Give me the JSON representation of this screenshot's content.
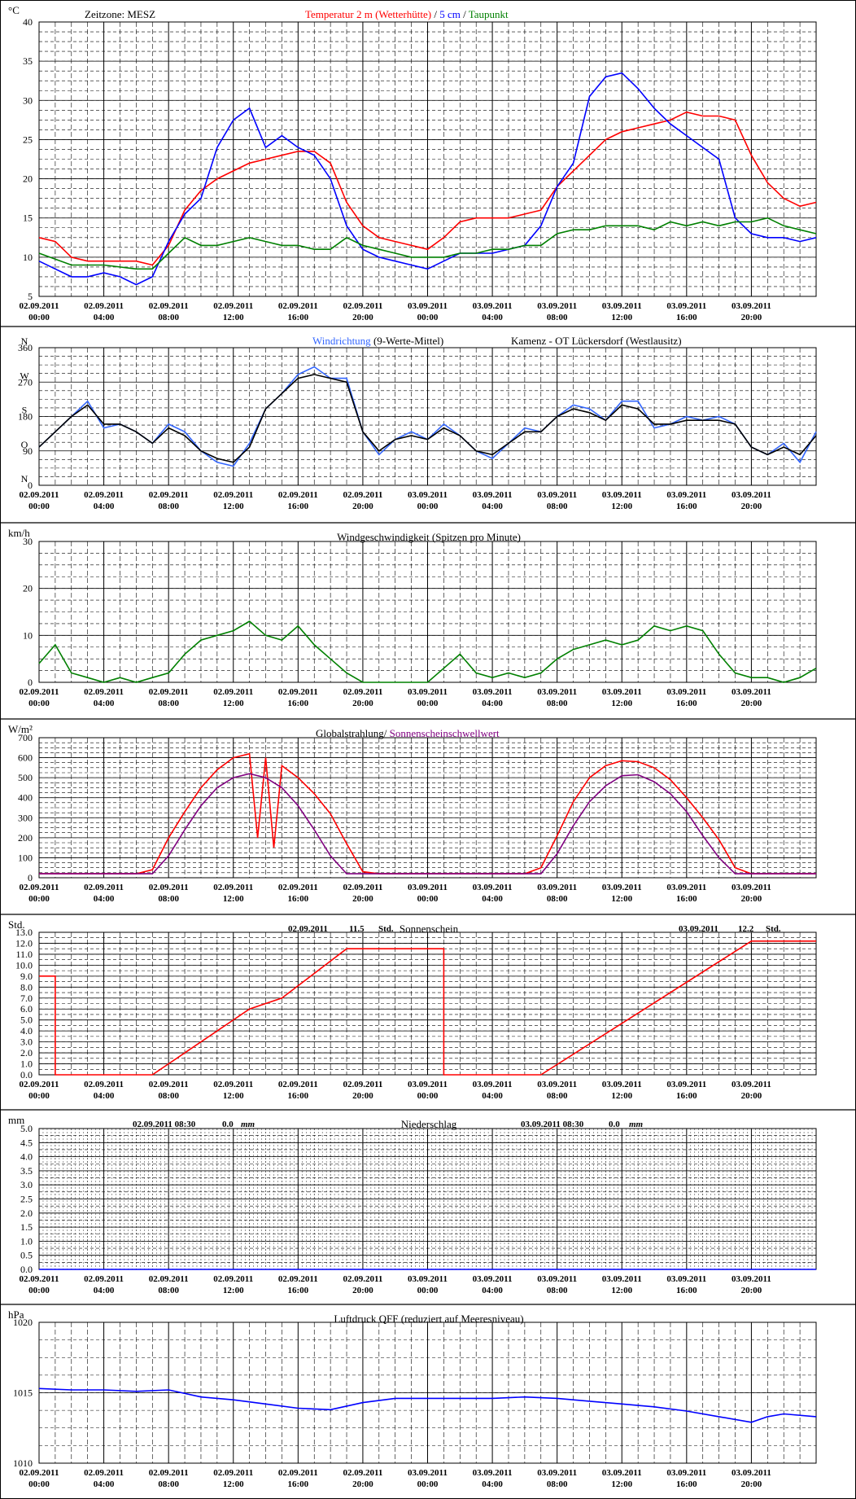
{
  "header": {
    "timezone": "Zeitzone: MESZ"
  },
  "time_axis": {
    "dates": [
      "02.09.2011",
      "02.09.2011",
      "02.09.2011",
      "02.09.2011",
      "02.09.2011",
      "02.09.2011",
      "03.09.2011",
      "03.09.2011",
      "03.09.2011",
      "03.09.2011",
      "03.09.2011",
      "03.09.2011"
    ],
    "times": [
      "00:00",
      "04:00",
      "08:00",
      "12:00",
      "16:00",
      "20:00",
      "00:00",
      "04:00",
      "08:00",
      "12:00",
      "16:00",
      "20:00"
    ]
  },
  "chart_data": [
    {
      "id": "temperature",
      "type": "line",
      "unit": "°C",
      "title_parts": [
        "Temperatur 2 m (Wetterhütte)",
        " / ",
        "5 cm",
        " / ",
        "Taupunkt"
      ],
      "title_colors": [
        "#ff0000",
        "#000000",
        "#0000ff",
        "#000000",
        "#008000"
      ],
      "ylim": [
        5,
        40
      ],
      "yticks": [
        5,
        10,
        15,
        20,
        25,
        30,
        35,
        40
      ],
      "x_unit": "hours since 02.09.2011 00:00",
      "xlim": [
        0,
        48
      ],
      "series": [
        {
          "color": "#ff0000",
          "x": [
            0,
            1,
            2,
            3,
            4,
            5,
            6,
            7,
            8,
            9,
            10,
            11,
            12,
            13,
            14,
            15,
            16,
            17,
            18,
            19,
            20,
            21,
            22,
            23,
            24,
            25,
            26,
            27,
            28,
            29,
            30,
            31,
            32,
            33,
            34,
            35,
            36,
            37,
            38,
            39,
            40,
            41,
            42,
            43,
            44,
            45,
            46,
            47,
            48
          ],
          "y": [
            12.5,
            12.0,
            10.0,
            9.5,
            9.5,
            9.5,
            9.5,
            9.0,
            11.5,
            16.0,
            18.5,
            20.0,
            21.0,
            22.0,
            22.5,
            23.0,
            23.5,
            23.5,
            22.0,
            17.0,
            14.0,
            12.5,
            12.0,
            11.5,
            11.0,
            12.5,
            14.5,
            15.0,
            15.0,
            15.0,
            15.5,
            16.0,
            19.0,
            21.0,
            23.0,
            25.0,
            26.0,
            26.5,
            27.0,
            27.5,
            28.5,
            28.0,
            28.0,
            27.5,
            23.0,
            19.5,
            17.5,
            16.5,
            17.0
          ]
        },
        {
          "color": "#0000ff",
          "x": [
            0,
            1,
            2,
            3,
            4,
            5,
            6,
            7,
            8,
            9,
            10,
            11,
            12,
            13,
            14,
            15,
            16,
            17,
            18,
            19,
            20,
            21,
            22,
            23,
            24,
            25,
            26,
            27,
            28,
            29,
            30,
            31,
            32,
            33,
            34,
            35,
            36,
            37,
            38,
            39,
            40,
            41,
            42,
            43,
            44,
            45,
            46,
            47,
            48
          ],
          "y": [
            9.5,
            8.5,
            7.5,
            7.5,
            8.0,
            7.5,
            6.5,
            7.5,
            12.0,
            15.5,
            17.5,
            24.0,
            27.5,
            29.0,
            24.0,
            25.5,
            24.0,
            23.0,
            20.0,
            14.0,
            11.0,
            10.0,
            9.5,
            9.0,
            8.5,
            9.5,
            10.5,
            10.5,
            10.5,
            11.0,
            11.5,
            14.0,
            19.0,
            22.0,
            30.5,
            33.0,
            33.5,
            31.5,
            29.0,
            27.0,
            25.5,
            24.0,
            22.5,
            15.0,
            13.0,
            12.5,
            12.5,
            12.0,
            12.5
          ]
        },
        {
          "color": "#008000",
          "x": [
            0,
            2,
            4,
            6,
            7,
            8,
            9,
            10,
            11,
            12,
            13,
            14,
            15,
            16,
            17,
            18,
            19,
            20,
            21,
            22,
            23,
            24,
            25,
            26,
            27,
            28,
            29,
            30,
            31,
            32,
            33,
            34,
            35,
            36,
            37,
            38,
            39,
            40,
            41,
            42,
            43,
            44,
            45,
            46,
            47,
            48
          ],
          "y": [
            10.5,
            9.0,
            9.0,
            8.5,
            8.5,
            10.5,
            12.5,
            11.5,
            11.5,
            12.0,
            12.5,
            12.0,
            11.5,
            11.5,
            11.0,
            11.0,
            12.5,
            11.5,
            11.0,
            10.5,
            10.0,
            10.0,
            10.0,
            10.5,
            10.5,
            11.0,
            11.0,
            11.5,
            11.5,
            13.0,
            13.5,
            13.5,
            14.0,
            14.0,
            14.0,
            13.5,
            14.5,
            14.0,
            14.5,
            14.0,
            14.5,
            14.5,
            15.0,
            14.0,
            13.5,
            13.0
          ]
        }
      ]
    },
    {
      "id": "wind_direction",
      "type": "line",
      "title_parts": [
        "Windrichtung",
        " (9-Werte-Mittel)"
      ],
      "title_colors": [
        "#3366ff",
        "#000000"
      ],
      "location": "Kamenz - OT Lückersdorf (Westlausitz)",
      "ylim": [
        0,
        360
      ],
      "yticks": [
        0,
        90,
        180,
        270,
        360
      ],
      "compass": [
        "N",
        "O",
        "S",
        "W",
        "N"
      ],
      "xlim": [
        0,
        48
      ],
      "series": [
        {
          "color": "#3366ff",
          "x": [
            0,
            1,
            2,
            3,
            4,
            5,
            6,
            7,
            8,
            9,
            10,
            11,
            12,
            13,
            14,
            15,
            16,
            17,
            18,
            19,
            20,
            21,
            22,
            23,
            24,
            25,
            26,
            27,
            28,
            29,
            30,
            31,
            32,
            33,
            34,
            35,
            36,
            37,
            38,
            39,
            40,
            41,
            42,
            43,
            44,
            45,
            46,
            47,
            48
          ],
          "y": [
            100,
            140,
            180,
            220,
            150,
            160,
            140,
            110,
            160,
            140,
            90,
            60,
            50,
            110,
            200,
            240,
            290,
            310,
            280,
            280,
            140,
            80,
            120,
            140,
            120,
            160,
            130,
            90,
            70,
            110,
            150,
            140,
            180,
            210,
            200,
            170,
            220,
            220,
            150,
            160,
            180,
            170,
            180,
            160,
            100,
            80,
            110,
            60,
            140
          ]
        },
        {
          "color": "#000000",
          "x": [
            0,
            1,
            2,
            3,
            4,
            5,
            6,
            7,
            8,
            9,
            10,
            11,
            12,
            13,
            14,
            15,
            16,
            17,
            18,
            19,
            20,
            21,
            22,
            23,
            24,
            25,
            26,
            27,
            28,
            29,
            30,
            31,
            32,
            33,
            34,
            35,
            36,
            37,
            38,
            39,
            40,
            41,
            42,
            43,
            44,
            45,
            46,
            47,
            48
          ],
          "y": [
            100,
            140,
            180,
            210,
            160,
            160,
            140,
            110,
            150,
            130,
            90,
            70,
            60,
            100,
            200,
            240,
            280,
            290,
            280,
            270,
            140,
            90,
            120,
            130,
            120,
            150,
            130,
            90,
            80,
            110,
            140,
            140,
            180,
            200,
            190,
            170,
            210,
            200,
            160,
            160,
            170,
            170,
            170,
            160,
            100,
            80,
            100,
            80,
            130
          ]
        }
      ]
    },
    {
      "id": "wind_speed",
      "type": "line",
      "title": "Windgeschwindigkeit (Spitzen pro Minute)",
      "unit": "km/h",
      "ylim": [
        0,
        30
      ],
      "yticks": [
        0,
        10,
        20,
        30
      ],
      "xlim": [
        0,
        48
      ],
      "series": [
        {
          "color": "#008000",
          "x": [
            0,
            1,
            2,
            3,
            4,
            5,
            6,
            7,
            8,
            9,
            10,
            11,
            12,
            13,
            14,
            15,
            16,
            17,
            18,
            19,
            20,
            21,
            22,
            23,
            24,
            25,
            26,
            27,
            28,
            29,
            30,
            31,
            32,
            33,
            34,
            35,
            36,
            37,
            38,
            39,
            40,
            41,
            42,
            43,
            44,
            45,
            46,
            47,
            48
          ],
          "y": [
            4,
            8,
            2,
            1,
            0,
            1,
            0,
            1,
            2,
            6,
            9,
            10,
            11,
            13,
            10,
            9,
            12,
            8,
            5,
            2,
            0,
            0,
            0,
            0,
            0,
            3,
            6,
            2,
            1,
            2,
            1,
            2,
            5,
            7,
            8,
            9,
            8,
            9,
            12,
            11,
            12,
            11,
            6,
            2,
            1,
            1,
            0,
            1,
            3
          ]
        }
      ]
    },
    {
      "id": "radiation",
      "type": "line",
      "title_parts": [
        "Globalstrahlung/",
        " Sonnenscheinschwellwert"
      ],
      "title_colors": [
        "#000000",
        "#800080"
      ],
      "unit": "W/m²",
      "ylim": [
        0,
        700
      ],
      "yticks": [
        0,
        100,
        200,
        300,
        400,
        500,
        600,
        700
      ],
      "xlim": [
        0,
        48
      ],
      "series": [
        {
          "color": "#ff0000",
          "x": [
            0,
            6,
            7,
            8,
            9,
            10,
            11,
            12,
            13,
            13.5,
            14,
            14.5,
            15,
            16,
            17,
            18,
            19,
            20,
            21,
            24,
            30,
            31,
            32,
            33,
            34,
            35,
            36,
            37,
            38,
            39,
            40,
            41,
            42,
            43,
            44,
            45,
            48
          ],
          "y": [
            20,
            20,
            40,
            200,
            330,
            450,
            540,
            600,
            620,
            200,
            600,
            150,
            560,
            500,
            420,
            320,
            170,
            30,
            20,
            20,
            20,
            50,
            210,
            380,
            500,
            560,
            585,
            580,
            550,
            490,
            400,
            300,
            190,
            50,
            20,
            20,
            20
          ]
        },
        {
          "color": "#800080",
          "x": [
            0,
            7,
            8,
            9,
            10,
            11,
            12,
            13,
            14,
            15,
            16,
            17,
            18,
            19,
            20,
            31,
            32,
            33,
            34,
            35,
            36,
            37,
            38,
            39,
            40,
            41,
            42,
            43,
            44,
            48
          ],
          "y": [
            20,
            20,
            110,
            240,
            360,
            450,
            500,
            520,
            500,
            450,
            360,
            240,
            110,
            20,
            20,
            20,
            120,
            260,
            380,
            460,
            510,
            515,
            480,
            420,
            330,
            210,
            100,
            20,
            20,
            20
          ]
        }
      ]
    },
    {
      "id": "sunshine",
      "type": "line",
      "title": "Sonnenschein",
      "unit": "Std.",
      "ylim": [
        0,
        13
      ],
      "yticks": [
        0.0,
        1.0,
        2.0,
        3.0,
        4.0,
        5.0,
        6.0,
        7.0,
        8.0,
        9.0,
        10.0,
        11.0,
        12.0,
        13.0
      ],
      "summaries": [
        {
          "date": "02.09.2011",
          "value": "11.5",
          "unit": "Std."
        },
        {
          "date": "03.09.2011",
          "value": "12.2",
          "unit": "Std."
        }
      ],
      "xlim": [
        0,
        48
      ],
      "series": [
        {
          "color": "#ff0000",
          "x": [
            0,
            1,
            1,
            7,
            13,
            15,
            19,
            25,
            25,
            31,
            44,
            48
          ],
          "y": [
            9.0,
            9.0,
            0,
            0,
            6.0,
            7.0,
            11.5,
            11.5,
            0,
            0,
            12.2,
            12.2
          ]
        }
      ]
    },
    {
      "id": "precipitation",
      "type": "line",
      "title": "Niederschlag",
      "unit": "mm",
      "ylim": [
        0,
        5
      ],
      "yticks": [
        0.0,
        0.5,
        1.0,
        1.5,
        2.0,
        2.5,
        3.0,
        3.5,
        4.0,
        4.5,
        5.0
      ],
      "summaries": [
        {
          "date": "02.09.2011 08:30",
          "value": "0.0",
          "unit": "mm"
        },
        {
          "date": "03.09.2011 08:30",
          "value": "0.0",
          "unit": "mm"
        }
      ],
      "xlim": [
        0,
        48
      ],
      "series": [
        {
          "color": "#0000ff",
          "x": [
            0,
            48
          ],
          "y": [
            0,
            0
          ]
        }
      ]
    },
    {
      "id": "pressure",
      "type": "line",
      "title": "Luftdruck QFF (reduziert auf Meeresniveau)",
      "unit": "hPa",
      "ylim": [
        1010,
        1020
      ],
      "yticks": [
        1010,
        1015,
        1020
      ],
      "xlim": [
        0,
        48
      ],
      "series": [
        {
          "color": "#0000ff",
          "x": [
            0,
            2,
            4,
            6,
            8,
            10,
            12,
            14,
            16,
            18,
            20,
            22,
            24,
            26,
            28,
            30,
            32,
            34,
            36,
            38,
            40,
            42,
            44,
            45,
            46,
            48
          ],
          "y": [
            1015.3,
            1015.2,
            1015.2,
            1015.1,
            1015.2,
            1014.7,
            1014.5,
            1014.2,
            1013.9,
            1013.8,
            1014.3,
            1014.6,
            1014.6,
            1014.6,
            1014.6,
            1014.7,
            1014.6,
            1014.4,
            1014.2,
            1014.0,
            1013.7,
            1013.3,
            1012.9,
            1013.3,
            1013.5,
            1013.3
          ]
        }
      ]
    }
  ]
}
